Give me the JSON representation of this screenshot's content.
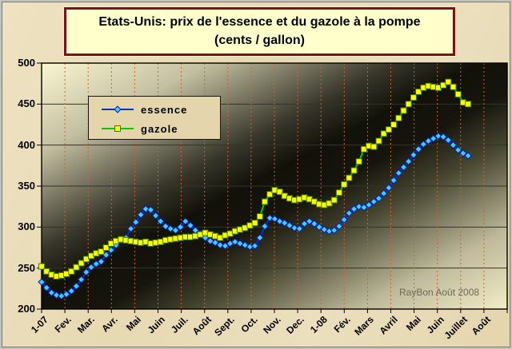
{
  "title": {
    "line1": "Etats-Unis: prix de l'essence et du gazole à la pompe",
    "line2": "(cents / gallon)"
  },
  "watermark": "RayBon Août 2008",
  "colors": {
    "outer_background": "#EADDB9",
    "title_box_bg": "#FFFFCC",
    "title_box_border": "#7E1212",
    "legend_bg": "#E4D5AD",
    "h_grid": "#34332A",
    "v_grid": "#D2622E",
    "axis": "#000000",
    "watermark_text": "#6E6A5C"
  },
  "chart_data": {
    "type": "line",
    "title": "Etats-Unis: prix de l'essence et du gazole à la pompe (cents / gallon)",
    "ylabel": "cents / gallon",
    "ylim": [
      200,
      500
    ],
    "yticks": [
      200,
      250,
      300,
      350,
      400,
      450,
      500
    ],
    "x_labels": [
      "1-07",
      "Fev.",
      "Mar.",
      "Avr.",
      "Mai",
      "Juin",
      "Juil.",
      "Août",
      "Sept.",
      "Oct.",
      "Nov.",
      "Dec.",
      "1-08",
      "Fév.",
      "Mars",
      "Avril",
      "Mai",
      "Juin",
      "Juillet",
      "Août"
    ],
    "grid": {
      "horizontal": true,
      "vertical_dashed": true
    },
    "legend_position": "top-left",
    "x_end_fraction": 0.916,
    "plot_bg_stops": [
      [
        0,
        "#FAF6D2"
      ],
      [
        0.18,
        "#C3C0A1"
      ],
      [
        0.38,
        "#37362A"
      ],
      [
        0.47,
        "#121109"
      ],
      [
        0.56,
        "#16150D"
      ],
      [
        0.66,
        "#45442F"
      ],
      [
        0.84,
        "#BDB99A"
      ],
      [
        1,
        "#F2ECC6"
      ]
    ],
    "series": [
      {
        "name": "essence",
        "line_color": "#0033CC",
        "marker": "diamond",
        "marker_fill": "#44CCFF",
        "marker_stroke": "#0022AA",
        "values": [
          233,
          226,
          220,
          217,
          216,
          218,
          222,
          228,
          236,
          245,
          251,
          255,
          258,
          266,
          272,
          278,
          284,
          287,
          298,
          306,
          315,
          322,
          321,
          314,
          307,
          301,
          298,
          296,
          300,
          307,
          302,
          296,
          292,
          287,
          283,
          281,
          278,
          277,
          280,
          282,
          280,
          278,
          276,
          277,
          287,
          301,
          311,
          310,
          307,
          305,
          302,
          299,
          298,
          304,
          307,
          304,
          300,
          297,
          295,
          296,
          301,
          309,
          317,
          322,
          325,
          324,
          327,
          331,
          335,
          341,
          348,
          357,
          366,
          373,
          380,
          388,
          395,
          401,
          405,
          408,
          411,
          410,
          406,
          400,
          394,
          390,
          387
        ]
      },
      {
        "name": "gazole",
        "line_color": "#00CC00",
        "marker": "square",
        "marker_fill": "#FFFF00",
        "marker_stroke": "#3F7A00",
        "values": [
          252,
          246,
          242,
          240,
          241,
          243,
          246,
          251,
          256,
          261,
          265,
          268,
          270,
          275,
          280,
          283,
          285,
          284,
          283,
          282,
          281,
          282,
          280,
          281,
          282,
          284,
          285,
          286,
          287,
          288,
          288,
          289,
          291,
          293,
          291,
          289,
          287,
          290,
          292,
          295,
          297,
          299,
          302,
          305,
          313,
          331,
          340,
          345,
          343,
          338,
          335,
          333,
          334,
          336,
          334,
          331,
          328,
          327,
          329,
          333,
          342,
          352,
          360,
          369,
          380,
          395,
          399,
          398,
          405,
          414,
          419,
          425,
          433,
          442,
          450,
          458,
          465,
          470,
          472,
          471,
          470,
          473,
          477,
          471,
          462,
          452,
          450
        ]
      }
    ]
  }
}
